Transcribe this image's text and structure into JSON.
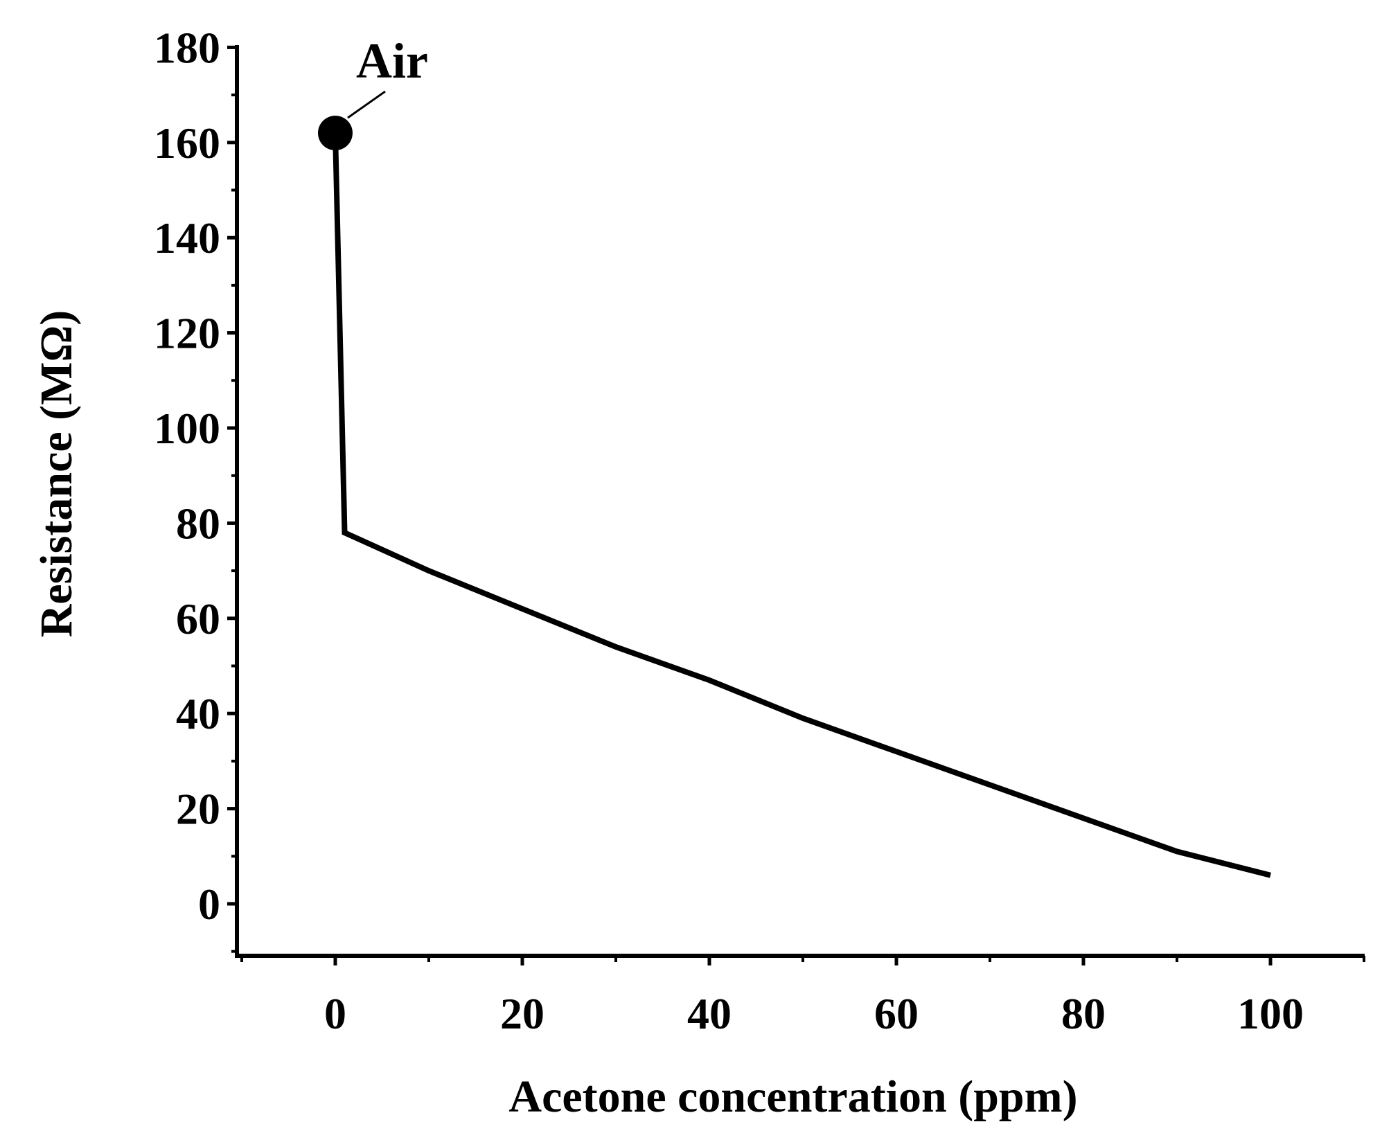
{
  "chart_data": {
    "type": "line",
    "title": "",
    "xlabel": "Acetone concentration (ppm)",
    "ylabel": "Resistance (MΩ)",
    "xlim": [
      -10,
      110
    ],
    "ylim": [
      -10,
      180
    ],
    "x_ticks": [
      0,
      20,
      40,
      60,
      80,
      100
    ],
    "y_ticks": [
      0,
      20,
      40,
      60,
      80,
      100,
      120,
      140,
      160,
      180
    ],
    "x_tick_labels": [
      "0",
      "20",
      "40",
      "60",
      "80",
      "100"
    ],
    "y_tick_labels": [
      "0",
      "20",
      "40",
      "60",
      "80",
      "100",
      "120",
      "140",
      "160",
      "180"
    ],
    "grid": false,
    "legend": "none",
    "series": [
      {
        "color": "#000000",
        "points": [
          {
            "x": 0,
            "y": 162
          },
          {
            "x": 1,
            "y": 78
          },
          {
            "x": 10,
            "y": 70
          },
          {
            "x": 20,
            "y": 62
          },
          {
            "x": 30,
            "y": 54
          },
          {
            "x": 40,
            "y": 47
          },
          {
            "x": 50,
            "y": 39
          },
          {
            "x": 60,
            "y": 32
          },
          {
            "x": 70,
            "y": 25
          },
          {
            "x": 80,
            "y": 18
          },
          {
            "x": 90,
            "y": 11
          },
          {
            "x": 100,
            "y": 6
          }
        ]
      }
    ],
    "annotations": [
      {
        "text": "Air",
        "x": 0,
        "y": 162,
        "marker": "filled-circle"
      }
    ]
  }
}
